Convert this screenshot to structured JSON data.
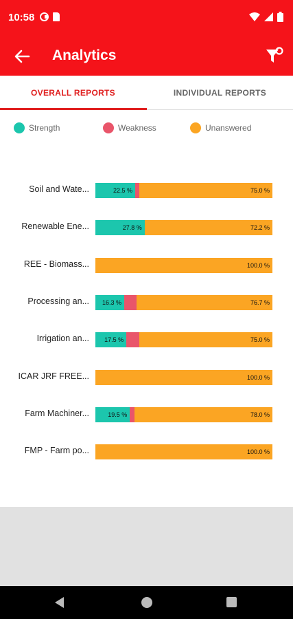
{
  "status": {
    "time": "10:58"
  },
  "appbar": {
    "title": "Analytics"
  },
  "tabs": [
    {
      "label": "OVERALL REPORTS",
      "active": true
    },
    {
      "label": "INDIVIDUAL REPORTS",
      "active": false
    }
  ],
  "legend": [
    {
      "label": "Strength",
      "color": "#1cc6ad"
    },
    {
      "label": "Weakness",
      "color": "#e9556a"
    },
    {
      "label": "Unanswered",
      "color": "#fba523"
    }
  ],
  "chart_data": {
    "type": "bar",
    "orientation": "horizontal",
    "stacked": true,
    "categories": [
      "Soil and Wate...",
      "Renewable Ene...",
      "REE - Biomass...",
      "Processing an...",
      "Irrigation an...",
      "ICAR JRF FREE...",
      "Farm Machiner...",
      "FMP - Farm po..."
    ],
    "series": [
      {
        "name": "Strength",
        "values": [
          22.5,
          27.8,
          0,
          16.3,
          17.5,
          0,
          19.5,
          0
        ],
        "labels": [
          "22.5 %",
          "27.8 %",
          "",
          "16.3 %",
          "17.5 %",
          "",
          "19.5 %",
          ""
        ]
      },
      {
        "name": "Weakness",
        "values": [
          2.5,
          0,
          0,
          7.0,
          7.5,
          0,
          2.5,
          0
        ],
        "labels": [
          "",
          "",
          "",
          "",
          "",
          "",
          "",
          ""
        ]
      },
      {
        "name": "Unanswered",
        "values": [
          75.0,
          72.2,
          100.0,
          76.7,
          75.0,
          100.0,
          78.0,
          100.0
        ],
        "labels": [
          "75.0 %",
          "72.2 %",
          "100.0 %",
          "76.7 %",
          "75.0 %",
          "100.0 %",
          "78.0 %",
          "100.0 %"
        ]
      }
    ],
    "xlim": [
      0,
      100
    ]
  }
}
